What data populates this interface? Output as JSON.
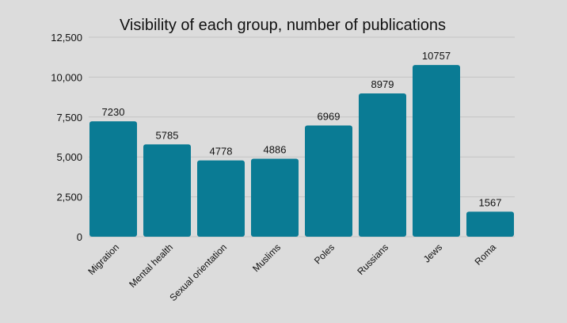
{
  "chart_data": {
    "type": "bar",
    "title": "Visibility of each group, number of publications",
    "categories": [
      "Migration",
      "Mental health",
      "Sexual orientation",
      "Muslims",
      "Poles",
      "Russians",
      "Jews",
      "Roma"
    ],
    "values": [
      7230,
      5785,
      4778,
      4886,
      6969,
      8979,
      10757,
      1567
    ],
    "data_labels": [
      "7230",
      "5785",
      "4778",
      "4886",
      "6969",
      "8979",
      "10757",
      "1567"
    ],
    "y_ticks": [
      0,
      2500,
      5000,
      7500,
      10000,
      12500
    ],
    "y_tick_labels": [
      "0",
      "2,500",
      "5,000",
      "7,500",
      "10,000",
      "12,500"
    ],
    "ylim": [
      0,
      12500
    ],
    "grid": true,
    "legend": "none",
    "bar_color": "#0a7b94",
    "grid_color": "#c4c4c4",
    "background_color": "#dcdcdc"
  }
}
